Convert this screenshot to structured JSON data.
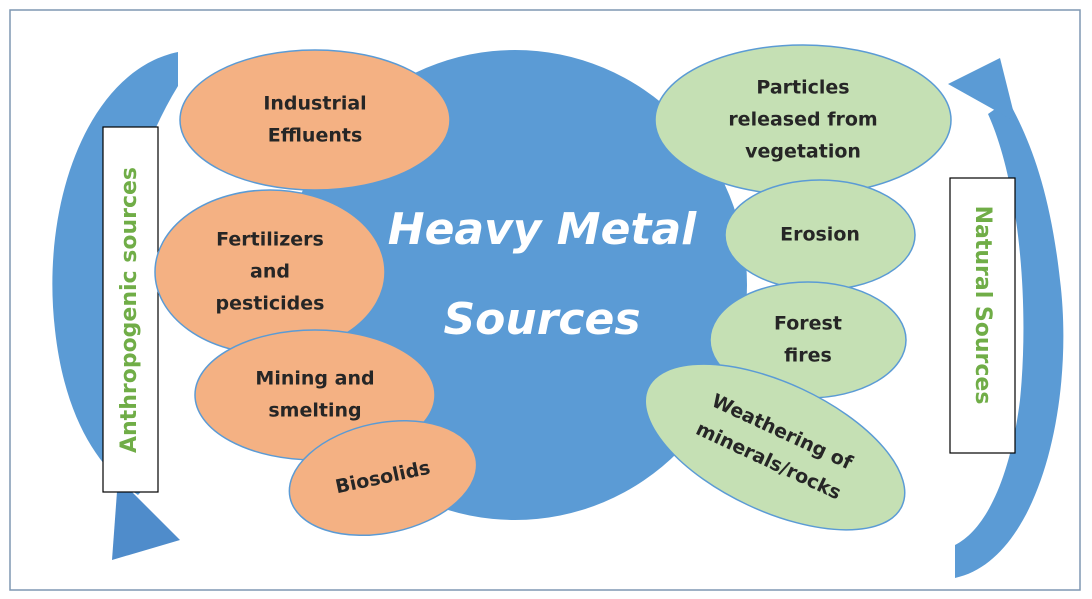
{
  "center": {
    "lines": [
      "Heavy Metal",
      "Sources"
    ]
  },
  "anthropogenic": {
    "label": "Anthropogenic sources",
    "nodes": [
      {
        "lines": [
          "Industrial",
          "Effluents"
        ]
      },
      {
        "lines": [
          "Fertilizers",
          "and",
          "pesticides"
        ]
      },
      {
        "lines": [
          "Mining and",
          "smelting"
        ]
      },
      {
        "lines": [
          "Biosolids"
        ]
      }
    ]
  },
  "natural": {
    "label": "Natural Sources",
    "nodes": [
      {
        "lines": [
          "Particles",
          "released from",
          "vegetation"
        ]
      },
      {
        "lines": [
          "Erosion"
        ]
      },
      {
        "lines": [
          "Forest",
          "fires"
        ]
      },
      {
        "lines": [
          "Weathering of",
          "minerals/rocks"
        ]
      }
    ]
  }
}
